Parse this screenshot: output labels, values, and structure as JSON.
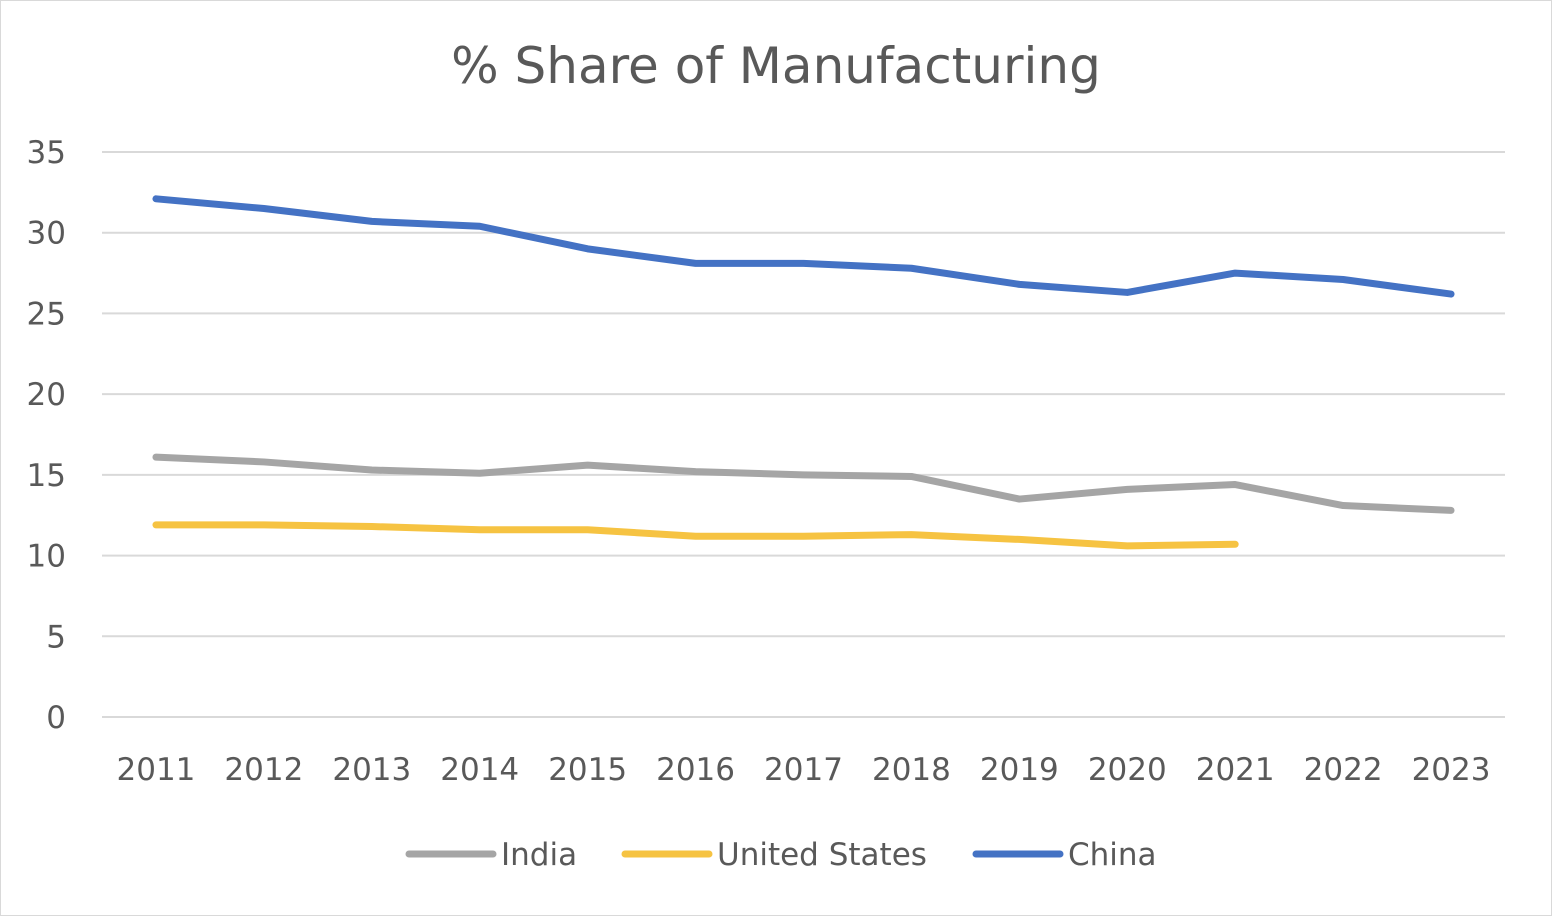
{
  "chart_data": {
    "type": "line",
    "title": "% Share of Manufacturing",
    "xlabel": "",
    "ylabel": "",
    "x": [
      "2011",
      "2012",
      "2013",
      "2014",
      "2015",
      "2016",
      "2017",
      "2018",
      "2019",
      "2020",
      "2021",
      "2022",
      "2023"
    ],
    "ylim": [
      0,
      35
    ],
    "yticks": [
      "0",
      "5",
      "10",
      "15",
      "20",
      "25",
      "30",
      "35"
    ],
    "grid": true,
    "legend_position": "bottom",
    "series": [
      {
        "name": "India",
        "color": "#a5a5a5",
        "values": [
          16.1,
          15.8,
          15.3,
          15.1,
          15.6,
          15.2,
          15.0,
          14.9,
          13.5,
          14.1,
          14.4,
          13.1,
          12.8
        ]
      },
      {
        "name": "United States",
        "color": "#f6c342",
        "values": [
          11.9,
          11.9,
          11.8,
          11.6,
          11.6,
          11.2,
          11.2,
          11.3,
          11.0,
          10.6,
          10.7,
          null,
          null
        ]
      },
      {
        "name": "China",
        "color": "#4472c4",
        "values": [
          32.1,
          31.5,
          30.7,
          30.4,
          29.0,
          28.1,
          28.1,
          27.8,
          26.8,
          26.3,
          27.5,
          27.1,
          26.2
        ]
      }
    ]
  }
}
